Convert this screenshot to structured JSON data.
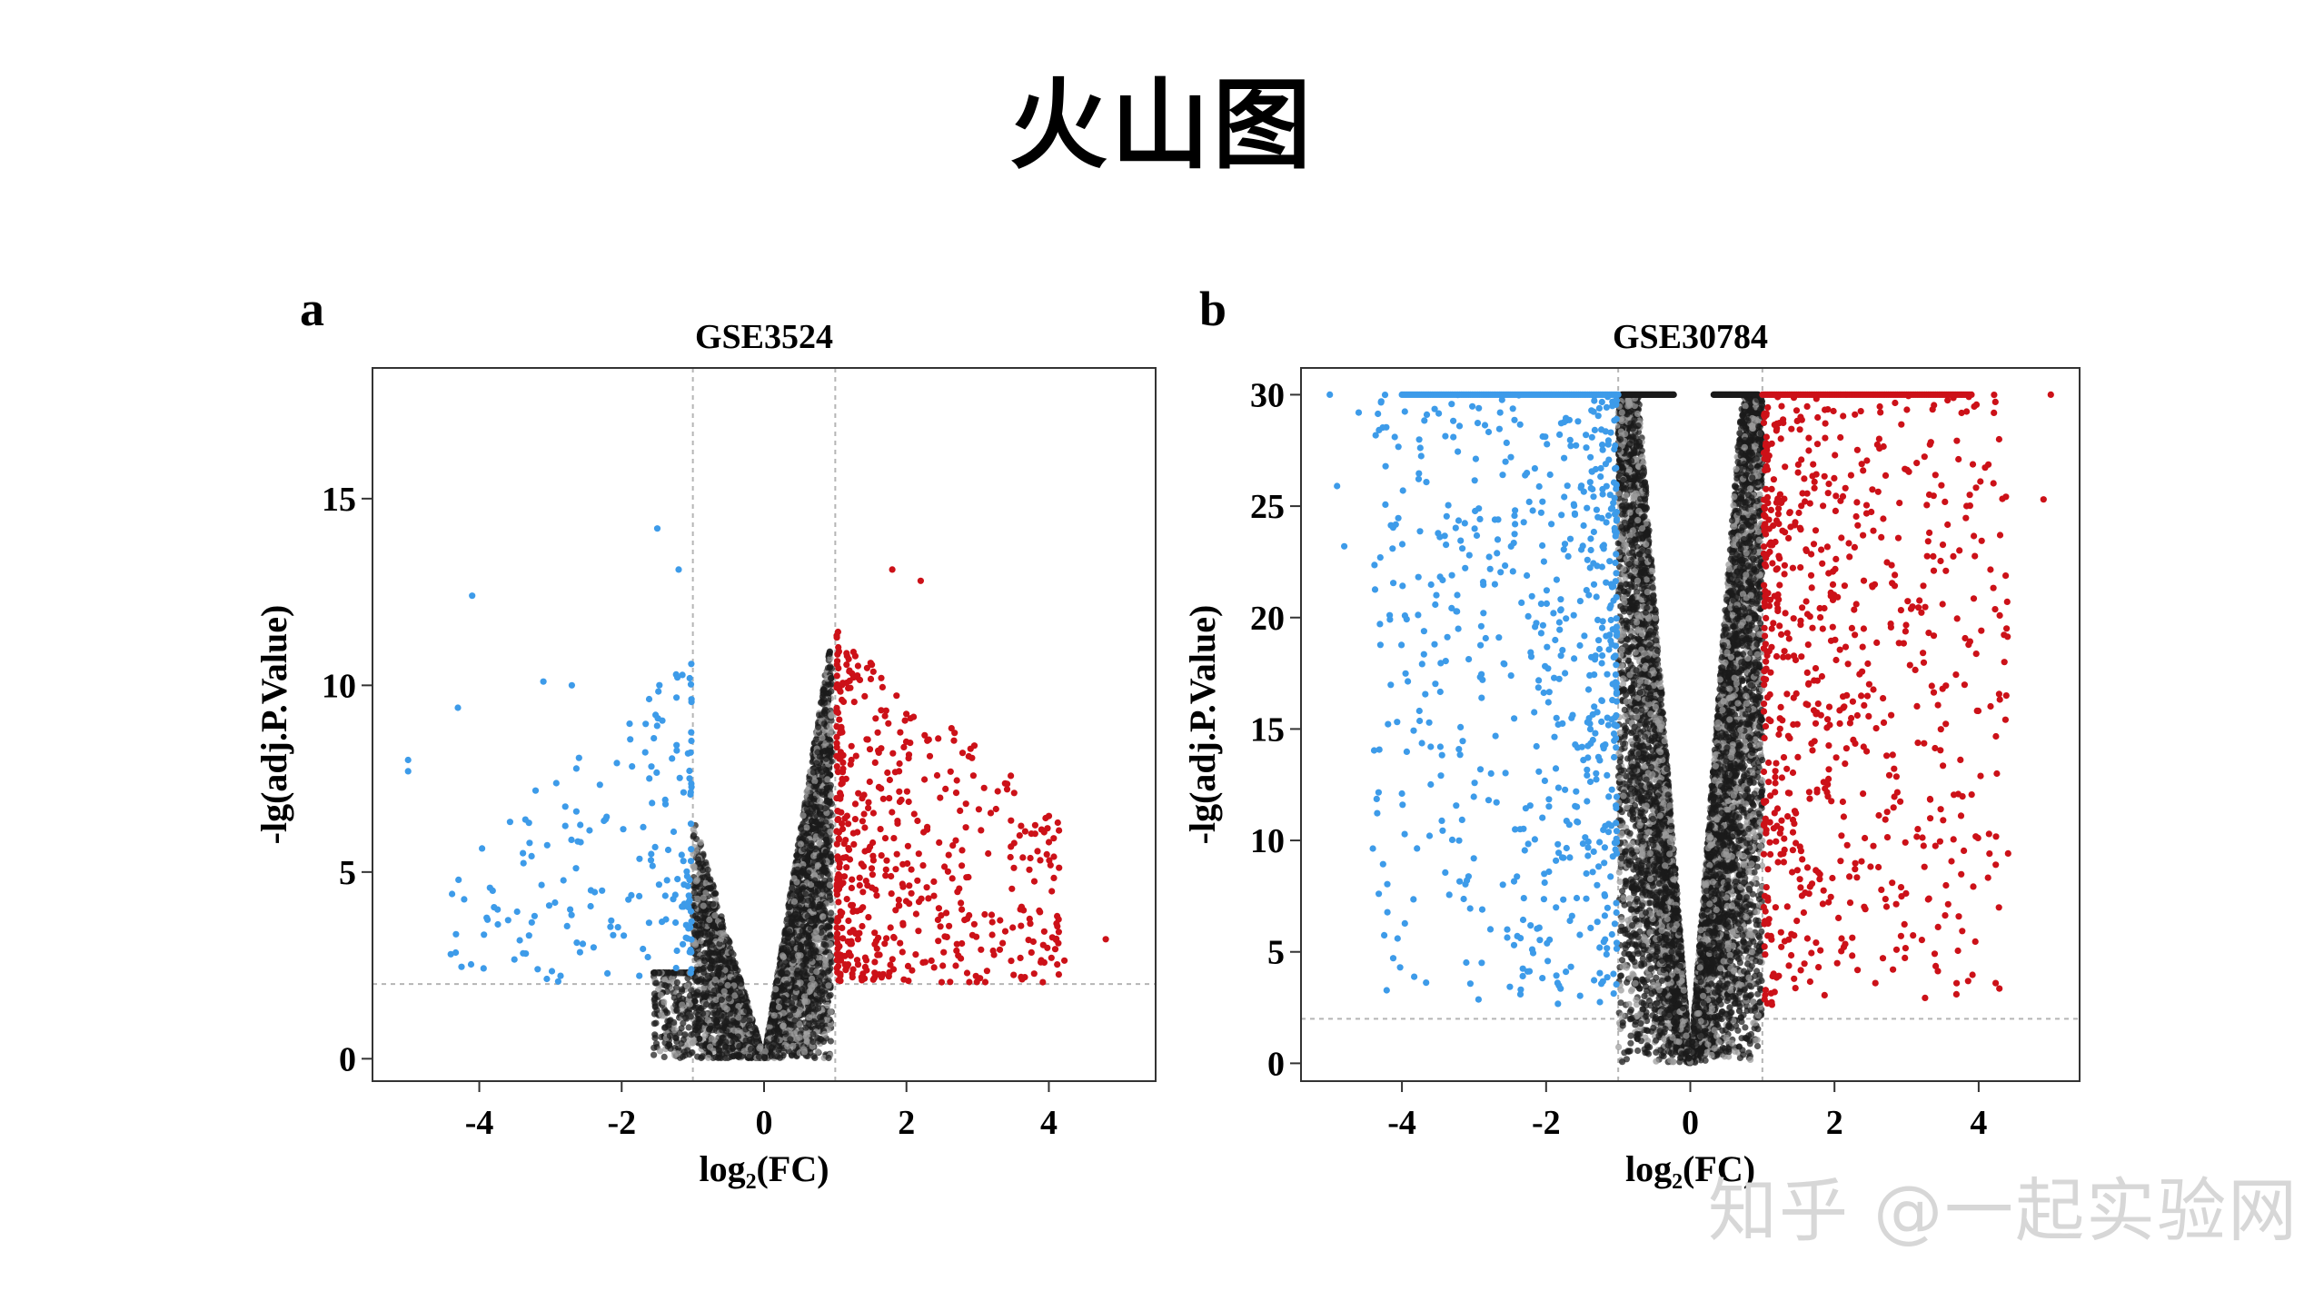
{
  "title": "火山图",
  "watermark": "知乎 @一起实验网",
  "colors": {
    "down": "#3d9be9",
    "up": "#cc1118",
    "ns": "#1a1a1a",
    "ns_light": "#9a9a9a",
    "threshold": "#b5b5b5"
  },
  "chart_data": [
    {
      "panel": "a",
      "type": "scatter",
      "title": "GSE3524",
      "xlabel": "log₂(FC)",
      "ylabel": "-lg(adj.P.Value)",
      "xlim": [
        -5.5,
        5.5
      ],
      "ylim": [
        -0.6,
        18.5
      ],
      "xticks": [
        -4,
        -2,
        0,
        2,
        4
      ],
      "yticks": [
        0,
        5,
        10,
        15
      ],
      "thresholds": {
        "logfc": [
          -1,
          1
        ],
        "y": 2.0
      },
      "series": [
        {
          "name": "down",
          "count": 180,
          "x_range": [
            -5.0,
            -1.0
          ],
          "y_range": [
            2.0,
            14.2
          ],
          "highlight_points": [
            [
              -5.0,
              8.0
            ],
            [
              -5.0,
              7.7
            ],
            [
              -4.1,
              12.4
            ],
            [
              -4.3,
              9.4
            ],
            [
              -1.5,
              14.2
            ],
            [
              -1.2,
              13.1
            ],
            [
              -3.1,
              10.1
            ],
            [
              -2.7,
              10.0
            ],
            [
              -4.4,
              2.8
            ]
          ]
        },
        {
          "name": "up",
          "count": 520,
          "x_range": [
            1.0,
            4.8
          ],
          "y_range": [
            2.0,
            13.2
          ],
          "highlight_points": [
            [
              4.8,
              3.2
            ],
            [
              4.0,
              6.5
            ],
            [
              4.0,
              5.8
            ],
            [
              3.6,
              4.0
            ],
            [
              3.6,
              2.7
            ],
            [
              2.2,
              12.8
            ],
            [
              1.8,
              13.1
            ],
            [
              2.9,
              8.3
            ]
          ]
        },
        {
          "name": "ns",
          "count": 5200,
          "x_range": [
            -1.5,
            1.0
          ],
          "y_range": [
            0,
            10.9
          ]
        }
      ]
    },
    {
      "panel": "b",
      "type": "scatter",
      "title": "GSE30784",
      "xlabel": "log₂(FC)",
      "ylabel": "-lg(adj.P.Value)",
      "xlim": [
        -5.4,
        5.4
      ],
      "ylim": [
        -0.8,
        31.2
      ],
      "xticks": [
        -4,
        -2,
        0,
        2,
        4
      ],
      "yticks": [
        0,
        5,
        10,
        15,
        20,
        25,
        30
      ],
      "thresholds": {
        "logfc": [
          -1,
          1
        ],
        "y": 2.0
      },
      "cap_y": 30,
      "series": [
        {
          "name": "down",
          "count": 620,
          "x_range": [
            -5.0,
            -1.0
          ],
          "y_range": [
            2.0,
            30
          ],
          "highlight_points": [
            [
              -5.0,
              30.0
            ],
            [
              -4.9,
              25.9
            ],
            [
              -4.8,
              23.2
            ],
            [
              -4.6,
              29.2
            ],
            [
              -4.1,
              28.1
            ],
            [
              -4.0,
              12.1
            ],
            [
              -3.6,
              14.2
            ]
          ]
        },
        {
          "name": "up",
          "count": 720,
          "x_range": [
            1.0,
            5.0
          ],
          "y_range": [
            2.0,
            30
          ],
          "highlight_points": [
            [
              5.0,
              30.0
            ],
            [
              4.9,
              25.3
            ],
            [
              3.5,
              20.6
            ],
            [
              3.5,
              16.8
            ],
            [
              3.4,
              26.4
            ],
            [
              2.8,
              8.1
            ]
          ]
        },
        {
          "name": "ns",
          "count": 9000,
          "x_range": [
            -1.0,
            1.0
          ],
          "y_range": [
            0,
            30
          ]
        }
      ]
    }
  ]
}
